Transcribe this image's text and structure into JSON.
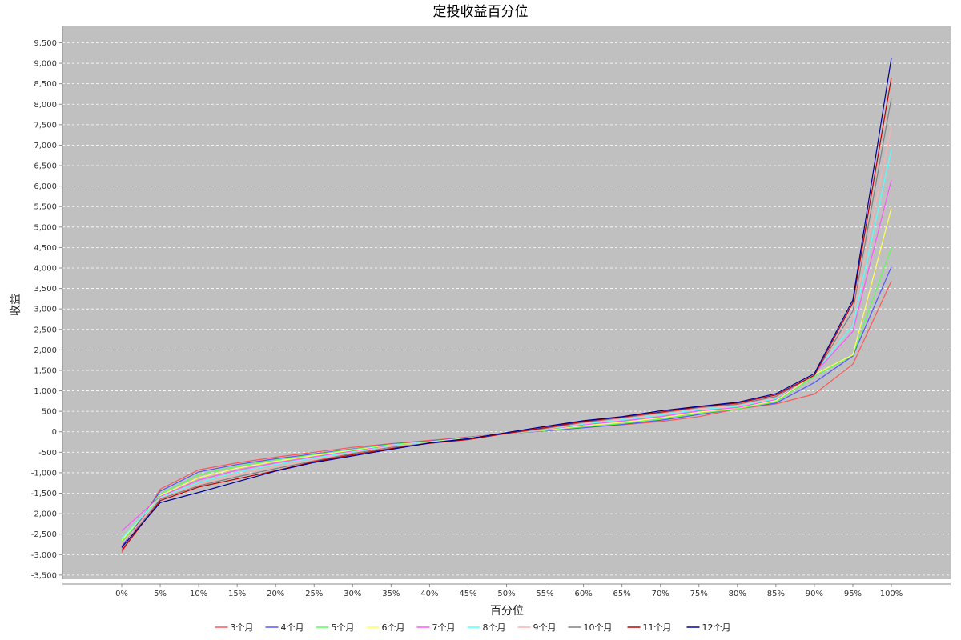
{
  "chart_data": {
    "type": "line",
    "title": "定投收益百分位",
    "xlabel": "百分位",
    "ylabel": "收益",
    "ylim": [
      -3600,
      9900
    ],
    "y_ticks": [
      "-3,500",
      "-3,000",
      "-2,500",
      "-2,000",
      "-1,500",
      "-1,000",
      "-500",
      "0",
      "500",
      "1,000",
      "1,500",
      "2,000",
      "2,500",
      "3,000",
      "3,500",
      "4,000",
      "4,500",
      "5,000",
      "5,500",
      "6,000",
      "6,500",
      "7,000",
      "7,500",
      "8,000",
      "8,500",
      "9,000",
      "9,500"
    ],
    "y_tick_values": [
      -3500,
      -3000,
      -2500,
      -2000,
      -1500,
      -1000,
      -500,
      0,
      500,
      1000,
      1500,
      2000,
      2500,
      3000,
      3500,
      4000,
      4500,
      5000,
      5500,
      6000,
      6500,
      7000,
      7500,
      8000,
      8500,
      9000,
      9500
    ],
    "categories": [
      "0%",
      "5%",
      "10%",
      "15%",
      "20%",
      "25%",
      "30%",
      "35%",
      "40%",
      "45%",
      "50%",
      "55%",
      "60%",
      "65%",
      "70%",
      "75%",
      "80%",
      "85%",
      "90%",
      "95%",
      "100%"
    ],
    "grid": true,
    "plot_background": "#c0c0c0",
    "legend_position": "bottom",
    "series": [
      {
        "name": "3个月",
        "color": "#ff5555",
        "values": [
          -2950,
          -1400,
          -930,
          -760,
          -620,
          -500,
          -380,
          -290,
          -210,
          -130,
          -40,
          20,
          100,
          170,
          250,
          370,
          560,
          680,
          920,
          1650,
          3680
        ]
      },
      {
        "name": "4个月",
        "color": "#5555ff",
        "values": [
          -2800,
          -1450,
          -980,
          -800,
          -660,
          -540,
          -420,
          -300,
          -230,
          -140,
          -40,
          20,
          100,
          180,
          280,
          420,
          570,
          700,
          1200,
          1850,
          4030
        ]
      },
      {
        "name": "5个月",
        "color": "#55ff55",
        "values": [
          -2700,
          -1520,
          -1050,
          -840,
          -690,
          -560,
          -430,
          -310,
          -240,
          -150,
          -40,
          30,
          120,
          200,
          310,
          450,
          560,
          730,
          1350,
          1870,
          4500
        ]
      },
      {
        "name": "6个月",
        "color": "#ffff55",
        "values": [
          -2650,
          -1560,
          -1120,
          -890,
          -720,
          -580,
          -450,
          -330,
          -250,
          -150,
          -40,
          40,
          150,
          230,
          340,
          480,
          580,
          760,
          1400,
          1880,
          5460
        ]
      },
      {
        "name": "7个月",
        "color": "#ff55ff",
        "values": [
          -2420,
          -1580,
          -1180,
          -940,
          -760,
          -610,
          -470,
          -340,
          -260,
          -160,
          -40,
          50,
          170,
          260,
          370,
          510,
          590,
          790,
          1420,
          2450,
          6150
        ]
      },
      {
        "name": "8个月",
        "color": "#55ffff",
        "values": [
          -2600,
          -1600,
          -1240,
          -990,
          -800,
          -640,
          -490,
          -350,
          -260,
          -160,
          -40,
          60,
          190,
          290,
          410,
          540,
          620,
          810,
          1430,
          2600,
          6900
        ]
      },
      {
        "name": "9个月",
        "color": "#ffafaf",
        "values": [
          -2750,
          -1620,
          -1280,
          -1040,
          -850,
          -680,
          -510,
          -360,
          -270,
          -170,
          -40,
          70,
          210,
          320,
          440,
          570,
          640,
          830,
          1420,
          2800,
          7450
        ]
      },
      {
        "name": "10个月",
        "color": "#808080",
        "values": [
          -2850,
          -1640,
          -1320,
          -1100,
          -900,
          -710,
          -530,
          -380,
          -280,
          -180,
          -40,
          80,
          230,
          340,
          460,
          590,
          670,
          860,
          1380,
          2950,
          8150
        ]
      },
      {
        "name": "11个月",
        "color": "#c00000",
        "values": [
          -2900,
          -1680,
          -1350,
          -1150,
          -950,
          -730,
          -560,
          -410,
          -280,
          -190,
          -40,
          100,
          250,
          360,
          480,
          610,
          700,
          900,
          1380,
          3150,
          8650
        ]
      },
      {
        "name": "12个月",
        "color": "#000099",
        "values": [
          -2820,
          -1730,
          -1480,
          -1220,
          -960,
          -750,
          -590,
          -430,
          -270,
          -170,
          -20,
          130,
          270,
          370,
          510,
          620,
          720,
          930,
          1420,
          3220,
          9130
        ]
      }
    ]
  }
}
